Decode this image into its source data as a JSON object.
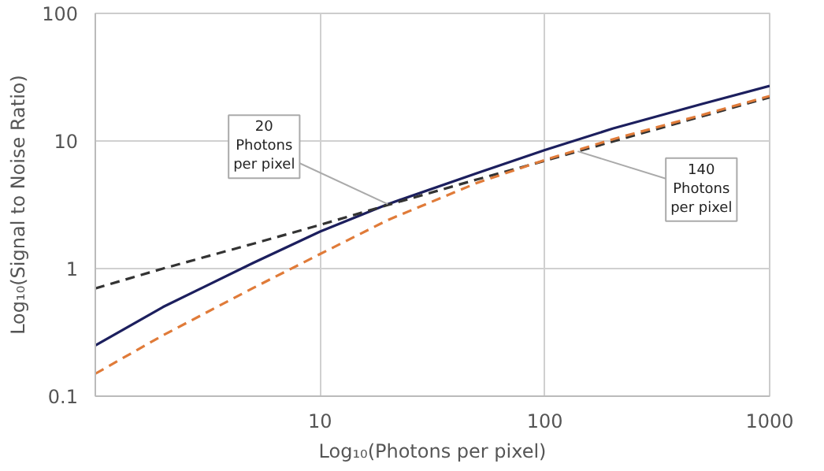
{
  "chart_data": {
    "type": "line",
    "xlabel": "Log₁₀(Photons per pixel)",
    "ylabel": "Log₁₀(Signal to Noise Ratio)",
    "log": "xy",
    "grid": true,
    "xlim": [
      1,
      1000
    ],
    "ylim": [
      0.1,
      100
    ],
    "xticks": [
      10,
      100,
      1000
    ],
    "yticks": [
      0.1,
      1,
      10,
      100
    ],
    "x": [
      1,
      2,
      5,
      10,
      20,
      50,
      100,
      200,
      500,
      1000
    ],
    "series": [
      {
        "color": "#1c1f5e",
        "line_style": "solid",
        "values": [
          0.25,
          0.5,
          1.1,
          1.95,
          3.2,
          5.6,
          8.5,
          12.5,
          19.5,
          27
        ]
      },
      {
        "color": "#333333",
        "line_style": "dashed",
        "values": [
          0.7,
          1.0,
          1.56,
          2.2,
          3.15,
          5.0,
          7.0,
          9.9,
          15.6,
          22
        ]
      },
      {
        "color": "#e07b39",
        "line_style": "dashed",
        "values": [
          0.15,
          0.3,
          0.7,
          1.3,
          2.4,
          4.7,
          7.1,
          10.3,
          16,
          22.5
        ]
      }
    ],
    "annotations": [
      {
        "text": "20\nPhotons\nper pixel",
        "x": 20,
        "y": 3.2
      },
      {
        "text": "140\nPhotons\nper pixel",
        "x": 140,
        "y": 8.3
      }
    ]
  }
}
